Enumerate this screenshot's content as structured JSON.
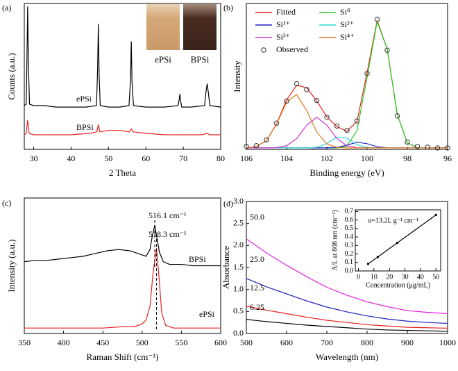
{
  "chart_data": [
    {
      "type": "line",
      "panel_label": "(a)",
      "x_label": "2 Theta",
      "y_label": "Counts (a.u.)",
      "xlim": [
        27.5,
        80
      ],
      "xticks": [
        30,
        40,
        50,
        60,
        70,
        80
      ],
      "ylim": [
        0,
        100
      ],
      "inset_labels": [
        "ePSi",
        "BPSi"
      ],
      "series": [
        {
          "name": "ePSi",
          "color": "#000000",
          "x": [
            27.5,
            28.0,
            28.2,
            28.4,
            28.6,
            28.9,
            30,
            33,
            36,
            40,
            44,
            46.8,
            47.1,
            47.3,
            47.5,
            47.8,
            50,
            53,
            55.5,
            55.9,
            56.1,
            56.3,
            56.7,
            60,
            65,
            68.6,
            68.9,
            69.1,
            69.3,
            69.6,
            72,
            75.7,
            76.1,
            76.4,
            76.7,
            77.1,
            80
          ],
          "values": [
            30,
            31,
            60,
            98,
            58,
            31,
            30,
            30,
            29,
            29,
            29,
            30,
            55,
            86,
            52,
            30,
            29,
            29,
            30,
            48,
            74,
            46,
            30,
            29,
            29,
            30,
            34,
            38,
            33,
            29,
            29,
            30,
            40,
            45,
            39,
            30,
            29
          ]
        },
        {
          "name": "BPSi",
          "color": "#e8201c",
          "x": [
            27.5,
            28.0,
            28.4,
            28.8,
            30,
            35,
            40,
            45,
            46.9,
            47.3,
            47.7,
            50,
            53,
            55.6,
            56.1,
            56.6,
            60,
            65,
            70,
            75,
            76.4,
            77,
            80
          ],
          "values": [
            10,
            11,
            20,
            11,
            10,
            10,
            10,
            11,
            12,
            17,
            12,
            13,
            13,
            12,
            14,
            12,
            11,
            10,
            10,
            10,
            11,
            10,
            10
          ]
        }
      ]
    },
    {
      "type": "line",
      "panel_label": "(b)",
      "x_label": "Binding energy (eV)",
      "y_label": "Intensity",
      "xlim": [
        106,
        96
      ],
      "xticks": [
        106,
        104,
        102,
        100,
        98,
        96
      ],
      "ylim": [
        0,
        100
      ],
      "legend": true,
      "x": [
        106,
        105.5,
        105,
        104.5,
        104,
        103.5,
        103,
        102.5,
        102,
        101.5,
        101,
        100.5,
        100,
        99.5,
        99,
        98.5,
        98,
        97.5,
        97,
        96.5,
        96
      ],
      "series": [
        {
          "name": "Fitted",
          "color": "#e8201c",
          "values": [
            1.1,
            1.9,
            6,
            17.4,
            33.9,
            44,
            42.2,
            33.2,
            22.3,
            15.6,
            12.4,
            19.2,
            52.7,
            88.4,
            68.7,
            24,
            4.4,
            1.2,
            1,
            1,
            1
          ]
        },
        {
          "name": "Si⁰",
          "color": "#22cc22",
          "values": [
            1,
            1,
            1,
            1,
            1,
            1,
            1,
            1,
            1,
            1,
            2.3,
            12.9,
            49.5,
            87.6,
            68.6,
            24,
            4.4,
            1.2,
            1,
            1,
            1
          ]
        },
        {
          "name": "Si¹⁺",
          "color": "#2020c0",
          "values": [
            1,
            1,
            1,
            1,
            1,
            1,
            1,
            1,
            1,
            1.4,
            2.9,
            4.9,
            3.9,
            1.8,
            1.1,
            1,
            1,
            1,
            1,
            1,
            1
          ]
        },
        {
          "name": "Si²⁺",
          "color": "#30d8d8",
          "values": [
            1,
            1,
            1,
            1,
            1,
            1,
            1,
            1.4,
            4,
            8.4,
            7.7,
            3.2,
            1.3,
            1,
            1,
            1,
            1,
            1,
            1,
            1,
            1
          ]
        },
        {
          "name": "Si³⁺",
          "color": "#d030d0",
          "values": [
            1,
            1,
            1,
            1.2,
            2.5,
            7.4,
            16.6,
            22,
            16.6,
            7.4,
            2.5,
            1.2,
            1,
            1,
            1,
            1,
            1,
            1,
            1,
            1,
            1
          ]
        },
        {
          "name": "Si⁴⁺",
          "color": "#e07818",
          "values": [
            1.1,
            1.9,
            6,
            17.2,
            32.4,
            37.6,
            26.6,
            11.8,
            3.7,
            1.4,
            1,
            1,
            1,
            1,
            1,
            1,
            1,
            1,
            1,
            1,
            1
          ]
        },
        {
          "name": "Observed",
          "color": "#333333",
          "marker": "circle",
          "values": [
            2,
            2.5,
            6.5,
            18,
            33,
            45,
            41,
            33.5,
            22,
            16,
            13,
            19.5,
            52,
            89,
            68,
            23,
            5,
            2,
            1.5,
            1,
            1
          ]
        }
      ]
    },
    {
      "type": "line",
      "panel_label": "(c)",
      "x_label": "Raman Shift (cm⁻¹)",
      "y_label": "Intensity (a.u.)",
      "xlim": [
        350,
        600
      ],
      "xticks": [
        350,
        400,
        450,
        500,
        550,
        600
      ],
      "ylim": [
        0,
        100
      ],
      "annotations": [
        {
          "text": "516.1 cm⁻¹",
          "x": 516.1
        },
        {
          "text": "518.3 cm⁻¹",
          "x": 518.3
        }
      ],
      "series": [
        {
          "name": "BPSi",
          "color": "#000000",
          "x": [
            350,
            365,
            380,
            395,
            410,
            425,
            440,
            455,
            470,
            485,
            500,
            505,
            510,
            513,
            516.1,
            519,
            522,
            527,
            535,
            550,
            565,
            580,
            600
          ],
          "values": [
            53,
            54,
            54,
            55,
            56,
            57,
            59,
            61,
            62,
            61,
            58,
            57,
            62,
            72,
            80,
            70,
            60,
            53,
            51,
            51,
            50,
            50,
            50
          ]
        },
        {
          "name": "ePSi",
          "color": "#e8201c",
          "x": [
            350,
            375,
            400,
            425,
            450,
            475,
            490,
            500,
            505,
            510,
            514,
            518.3,
            522,
            525,
            530,
            540,
            560,
            580,
            600
          ],
          "values": [
            4,
            4,
            4,
            4,
            4,
            5,
            5,
            7,
            10,
            20,
            45,
            63,
            38,
            15,
            6,
            4,
            4,
            4,
            4
          ]
        }
      ]
    },
    {
      "type": "line",
      "panel_label": "(d)",
      "x_label": "Wavelength (nm)",
      "y_label": "Absorbance",
      "xlim": [
        500,
        1000
      ],
      "xticks": [
        500,
        600,
        700,
        800,
        900,
        1000
      ],
      "ylim": [
        0,
        3
      ],
      "yticks": [
        {
          "value": 0,
          "label": "0.0"
        },
        0.5,
        {
          "value": 1,
          "label": "1.0"
        },
        1.5,
        {
          "value": 2,
          "label": "2.0"
        },
        2.5,
        {
          "value": 3,
          "label": "3.0"
        }
      ],
      "x": [
        500,
        550,
        600,
        650,
        700,
        750,
        800,
        850,
        900,
        950,
        1000
      ],
      "series": [
        {
          "name": "50.0",
          "color": "#e020e0",
          "values": [
            2.15,
            1.83,
            1.55,
            1.29,
            1.05,
            0.87,
            0.72,
            0.61,
            0.52,
            0.48,
            0.45
          ]
        },
        {
          "name": "25.0",
          "color": "#2020c0",
          "values": [
            1.25,
            1.06,
            0.9,
            0.74,
            0.6,
            0.49,
            0.4,
            0.33,
            0.28,
            0.25,
            0.23
          ]
        },
        {
          "name": "12.5",
          "color": "#e8201c",
          "values": [
            0.62,
            0.53,
            0.45,
            0.37,
            0.3,
            0.25,
            0.2,
            0.17,
            0.14,
            0.13,
            0.12
          ]
        },
        {
          "name": "6.25",
          "color": "#000000",
          "values": [
            0.32,
            0.27,
            0.23,
            0.19,
            0.16,
            0.13,
            0.1,
            0.08,
            0.07,
            0.06,
            0.05
          ]
        }
      ]
    },
    {
      "type": "line",
      "markers": true,
      "x_label": "Concentration (μg/mL)",
      "y_label": "A/L at 808 nm (cm⁻¹)",
      "xlim": [
        -2,
        53
      ],
      "xticks": [
        0,
        10,
        20,
        30,
        40,
        50
      ],
      "ylim": [
        0,
        0.72
      ],
      "yticks": [
        {
          "value": 0,
          "label": "0.0"
        },
        0.1,
        0.2,
        0.3,
        0.4,
        0.5,
        0.6,
        0.7
      ],
      "annotations": [
        {
          "text": "α=13.2L g⁻¹ cm⁻¹"
        }
      ],
      "x": [
        6.25,
        12.5,
        25,
        50
      ],
      "series": [
        {
          "color": "#000000",
          "values": [
            0.083,
            0.165,
            0.33,
            0.66
          ]
        }
      ]
    }
  ]
}
